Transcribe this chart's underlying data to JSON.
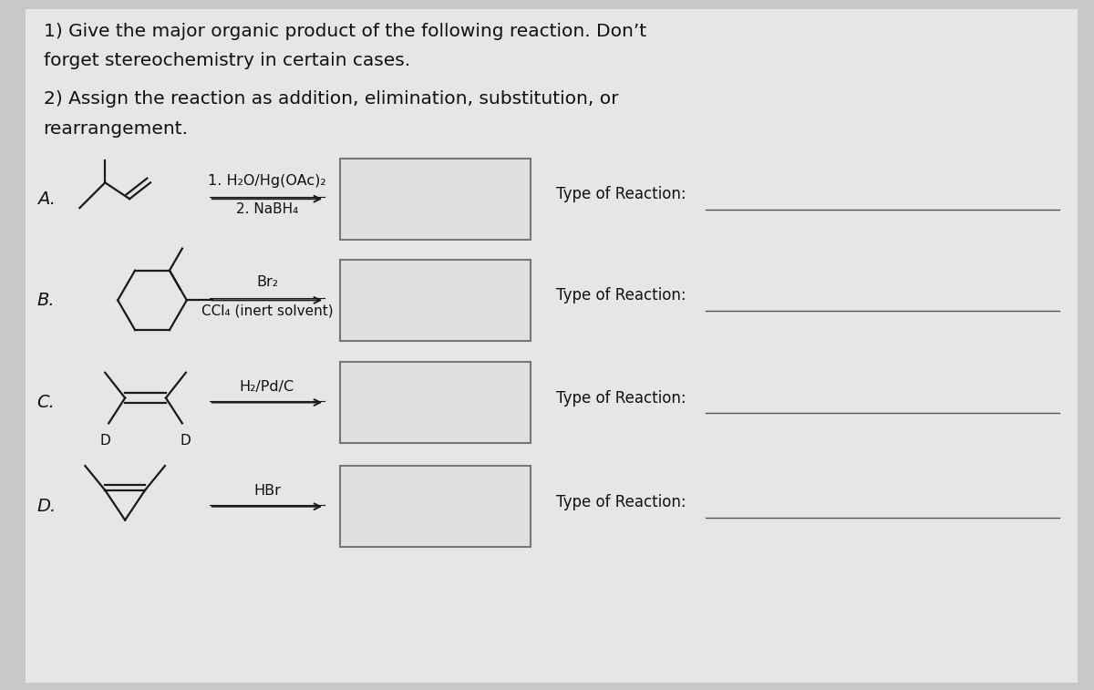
{
  "background_color": "#c8c8c8",
  "panel_color": "#e6e6e6",
  "title1": "1) Give the major organic product of the following reaction. Don’t",
  "title2": "forget stereochemistry in certain cases.",
  "title3": "2) Assign the reaction as addition, elimination, substitution, or",
  "title4": "rearrangement.",
  "rows": [
    {
      "label": "A.",
      "reagent_line1": "1. H₂O/Hg(OAc)₂",
      "reagent_line2": "2. NaBH₄",
      "type_label": "Type of Reaction:"
    },
    {
      "label": "B.",
      "reagent_line1": "Br₂",
      "reagent_line2": "CCl₄ (inert solvent)",
      "type_label": "Type of Reaction:"
    },
    {
      "label": "C.",
      "reagent_line1": "H₂/Pd/C",
      "reagent_line2": "",
      "type_label": "Type of Reaction:"
    },
    {
      "label": "D.",
      "reagent_line1": "HBr",
      "reagent_line2": "",
      "type_label": "Type of Reaction:"
    }
  ],
  "box_color": "#e0e0e0",
  "box_edge_color": "#777777",
  "text_color": "#111111",
  "line_color": "#1a1a1a",
  "font_size_title": 14.5,
  "font_size_label": 14,
  "font_size_reagent": 11.5,
  "font_size_type": 12
}
